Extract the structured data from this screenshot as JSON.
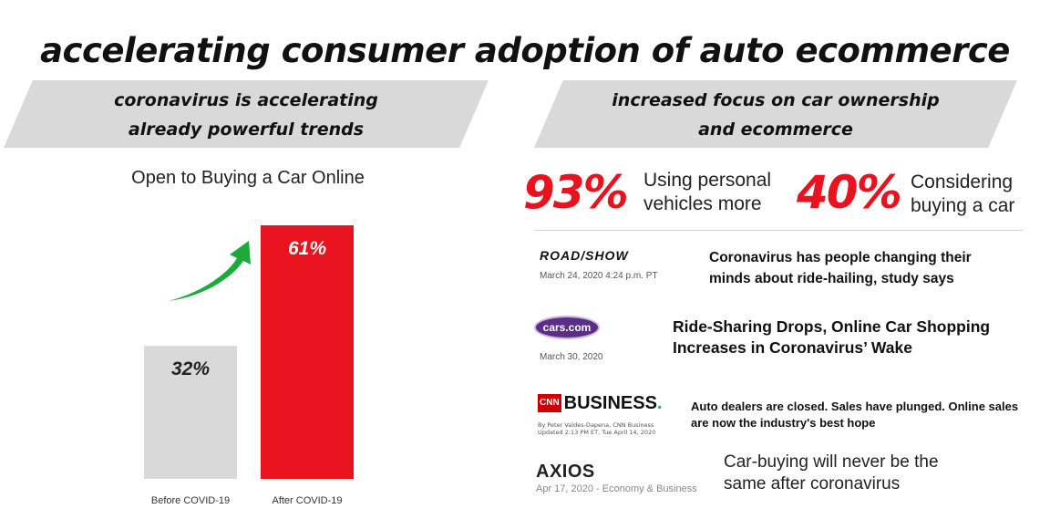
{
  "title": "accelerating consumer adoption of auto ecommerce",
  "left_banner": {
    "line1": "coronavirus is accelerating",
    "line2": "already powerful trends"
  },
  "right_banner": {
    "line1": "increased focus on car ownership",
    "line2": "and ecommerce"
  },
  "chart_data": {
    "type": "bar",
    "title": "Open to Buying a Car Online",
    "categories": [
      "Before COVID-19",
      "After COVID-19"
    ],
    "values": [
      32,
      61
    ],
    "data_labels": [
      "32%",
      "61%"
    ],
    "ylim": [
      0,
      61
    ],
    "grid": false,
    "colors": [
      "#d9d9d9",
      "#e8131f"
    ],
    "annotations": [
      "green upward arrow between bars"
    ]
  },
  "stats": [
    {
      "value": "93%",
      "label_line1": "Using personal",
      "label_line2": "vehicles more"
    },
    {
      "value": "40%",
      "label_line1": "Considering",
      "label_line2": "buying a car"
    }
  ],
  "news": {
    "roadshow": {
      "logo": "ROAD/SHOW",
      "date": "March 24, 2020 4:24 p.m. PT",
      "headline_line1": "Coronavirus has people changing their",
      "headline_line2": "minds about ride-hailing, study says"
    },
    "cars": {
      "logo": "cars.com",
      "date": "March 30, 2020",
      "headline_line1": "Ride-Sharing Drops, Online Car Shopping",
      "headline_line2": "Increases in Coronavirus’ Wake"
    },
    "cnn": {
      "logo_mark": "CNN",
      "logo_text": "BUSINESS",
      "byline_line1": "By Peter Valdes-Dapena, CNN Business",
      "byline_line2": "Updated 2:13 PM ET, Tue April 14, 2020",
      "headline_line1": "Auto dealers are closed. Sales have plunged. Online sales",
      "headline_line2": "are now the industry's best hope"
    },
    "axios": {
      "logo": "AXIOS",
      "date": "Apr 17, 2020 - Economy & Business",
      "headline_line1": "Car-buying will never be the",
      "headline_line2": "same after coronavirus"
    }
  },
  "colors": {
    "accent_red": "#e8131f",
    "banner_gray": "#d9d9d9",
    "arrow_green": "#1aab3a"
  }
}
